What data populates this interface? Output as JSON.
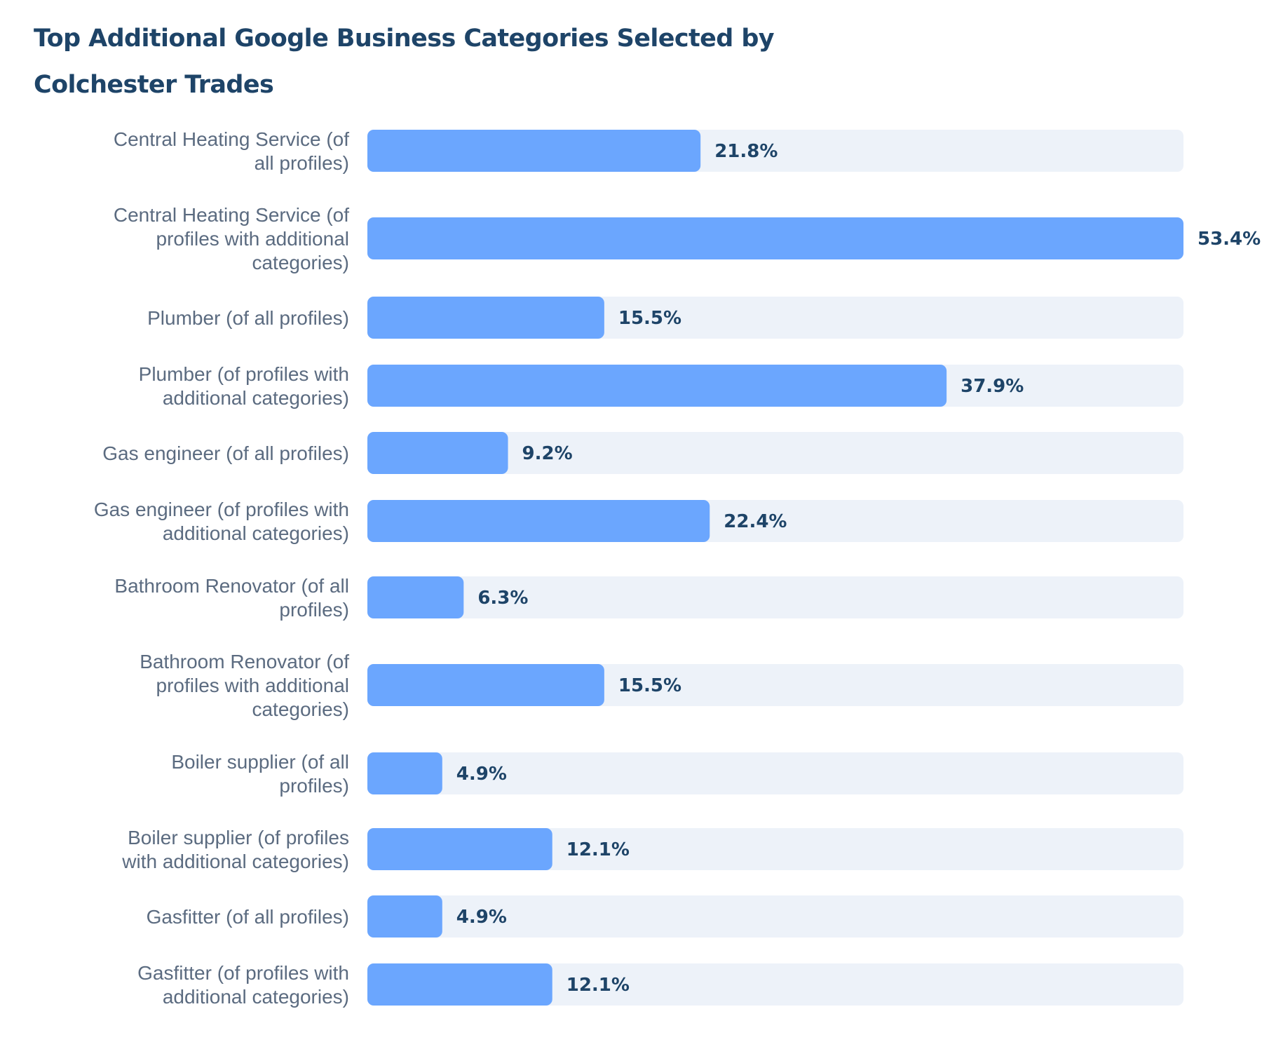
{
  "chart_data": {
    "type": "bar",
    "orientation": "horizontal",
    "title": "Top Additional Google Business Categories Selected by Colchester Trades",
    "xlabel": "",
    "ylabel": "",
    "xlim": [
      0,
      53.4
    ],
    "grid": false,
    "legend": "none",
    "value_suffix": "%",
    "categories": [
      "Central Heating Service (of all profiles)",
      "Central Heating Service (of profiles with additional categories)",
      "Plumber (of all profiles)",
      "Plumber (of profiles with additional categories)",
      "Gas engineer (of all profiles)",
      "Gas engineer (of profiles with additional categories)",
      "Bathroom Renovator (of all profiles)",
      "Bathroom Renovator (of profiles with additional categories)",
      "Boiler supplier (of all profiles)",
      "Boiler supplier (of profiles with additional categories)",
      "Gasfitter (of all profiles)",
      "Gasfitter (of profiles with additional categories)"
    ],
    "values": [
      21.8,
      53.4,
      15.5,
      37.9,
      9.2,
      22.4,
      6.3,
      15.5,
      4.9,
      12.1,
      4.9,
      12.1
    ],
    "value_labels": [
      "21.8%",
      "53.4%",
      "15.5%",
      "37.9%",
      "9.2%",
      "22.4%",
      "6.3%",
      "15.5%",
      "4.9%",
      "12.1%",
      "4.9%",
      "12.1%"
    ],
    "colors": {
      "bar": "#6ba6fe",
      "track": "#edf2f9",
      "title": "#1e4468",
      "category_text": "#5b6b80",
      "value_text": "#1e4468"
    }
  }
}
